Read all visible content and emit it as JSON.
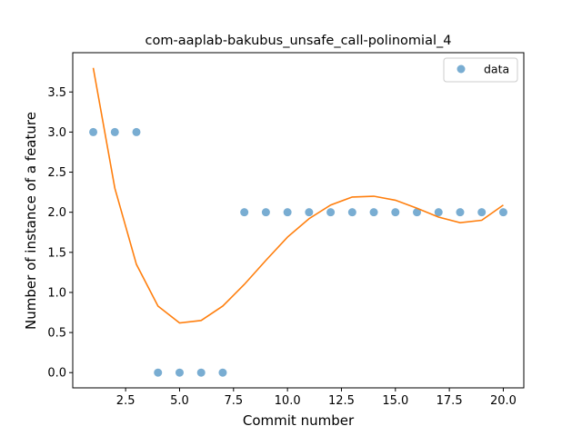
{
  "chart_data": {
    "type": "scatter",
    "title": "com-aaplab-bakubus_unsafe_call-polinomial_4",
    "xlabel": "Commit number",
    "ylabel": "Number of instance of a feature",
    "xlim": [
      0.05,
      20.95
    ],
    "ylim": [
      -0.19,
      3.99
    ],
    "xticks": [
      2.5,
      5.0,
      7.5,
      10.0,
      12.5,
      15.0,
      17.5,
      20.0
    ],
    "xtick_labels": [
      "2.5",
      "5.0",
      "7.5",
      "10.0",
      "12.5",
      "15.0",
      "17.5",
      "20.0"
    ],
    "yticks": [
      0.0,
      0.5,
      1.0,
      1.5,
      2.0,
      2.5,
      3.0,
      3.5
    ],
    "ytick_labels": [
      "0.0",
      "0.5",
      "1.0",
      "1.5",
      "2.0",
      "2.5",
      "3.0",
      "3.5"
    ],
    "grid": false,
    "legend_position": "top-right",
    "series": [
      {
        "name": "data",
        "kind": "scatter",
        "color": "#1f77b4",
        "x": [
          1,
          2,
          3,
          4,
          5,
          6,
          7,
          8,
          9,
          10,
          11,
          12,
          13,
          14,
          15,
          16,
          17,
          18,
          19,
          20
        ],
        "y": [
          3,
          3,
          3,
          0,
          0,
          0,
          0,
          2,
          2,
          2,
          2,
          2,
          2,
          2,
          2,
          2,
          2,
          2,
          2,
          2
        ]
      },
      {
        "kind": "line",
        "color": "#ff7f0e",
        "x": [
          1,
          2,
          3,
          4,
          5,
          6,
          7,
          8,
          9,
          10,
          11,
          12,
          13,
          14,
          15,
          16,
          17,
          18,
          19,
          20
        ],
        "y": [
          3.8,
          2.3,
          1.35,
          0.83,
          0.62,
          0.65,
          0.83,
          1.1,
          1.4,
          1.69,
          1.92,
          2.09,
          2.19,
          2.2,
          2.15,
          2.05,
          1.94,
          1.87,
          1.9,
          2.09
        ]
      }
    ]
  }
}
